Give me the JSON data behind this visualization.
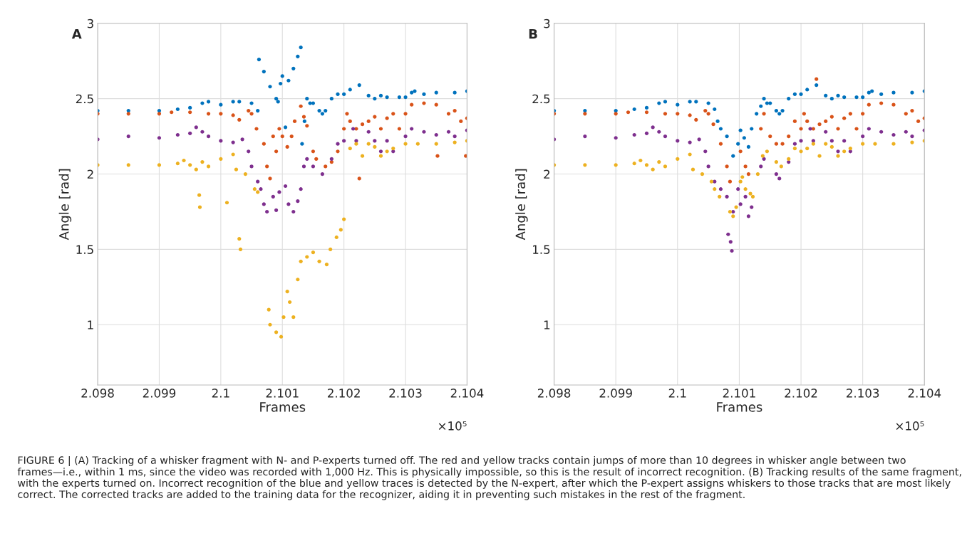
{
  "chart_data": [
    {
      "type": "scatter",
      "xlabel": "Frames",
      "ylabel": "Angle [rad]",
      "xlim": [
        2.098,
        2.104
      ],
      "ylim": [
        0.6,
        3
      ],
      "xticks": [
        2.098,
        2.099,
        2.1,
        2.101,
        2.102,
        2.103,
        2.104
      ],
      "yticks": [
        1,
        1.5,
        2,
        2.5,
        3
      ],
      "grid": true,
      "marker": "circle",
      "annotations": [
        "A",
        "×10⁵"
      ],
      "series": [
        {
          "color": "#0072bd",
          "x": [
            2.098,
            2.0985,
            2.099,
            2.0993,
            2.0995,
            2.0997,
            2.0998,
            2.1,
            2.1002,
            2.1003,
            2.1005,
            2.1006,
            2.10062,
            2.1007,
            2.1008,
            2.1009,
            2.10093,
            2.10097,
            2.101,
            2.10105,
            2.1011,
            2.10118,
            2.10125,
            2.1013,
            2.10132,
            2.10136,
            2.1014,
            2.10145,
            2.1015,
            2.1016,
            2.10165,
            2.1017,
            2.1018,
            2.1019,
            2.102,
            2.1021,
            2.10225,
            2.1024,
            2.1025,
            2.1026,
            2.1027,
            2.1029,
            2.103,
            2.1031,
            2.10315,
            2.1033,
            2.1035,
            2.1038,
            2.104
          ],
          "values": [
            2.42,
            2.42,
            2.42,
            2.43,
            2.44,
            2.47,
            2.48,
            2.46,
            2.48,
            2.48,
            2.47,
            2.42,
            2.76,
            2.68,
            2.58,
            2.5,
            2.48,
            2.6,
            2.65,
            2.31,
            2.62,
            2.7,
            2.78,
            2.84,
            2.2,
            2.35,
            2.5,
            2.47,
            2.47,
            2.42,
            2.4,
            2.42,
            2.5,
            2.53,
            2.53,
            2.56,
            2.59,
            2.52,
            2.5,
            2.52,
            2.51,
            2.51,
            2.51,
            2.54,
            2.55,
            2.53,
            2.54,
            2.54,
            2.55
          ]
        },
        {
          "color": "#d95319",
          "x": [
            2.098,
            2.0985,
            2.099,
            2.0992,
            2.0995,
            2.0998,
            2.1,
            2.1002,
            2.1003,
            2.10045,
            2.1005,
            2.10058,
            2.1007,
            2.10075,
            2.1008,
            2.10085,
            2.1009,
            2.10095,
            2.101,
            2.10108,
            2.10115,
            2.1012,
            2.1013,
            2.10135,
            2.1014,
            2.1015,
            2.10155,
            2.1017,
            2.1018,
            2.1019,
            2.102,
            2.10205,
            2.1021,
            2.1022,
            2.10225,
            2.1023,
            2.1024,
            2.1025,
            2.1026,
            2.1027,
            2.1028,
            2.1029,
            2.103,
            2.1031,
            2.1033,
            2.1035,
            2.10352,
            2.1037,
            2.1038,
            2.1039,
            2.10398,
            2.104
          ],
          "values": [
            2.4,
            2.4,
            2.4,
            2.41,
            2.41,
            2.4,
            2.4,
            2.39,
            2.36,
            2.42,
            2.4,
            2.3,
            2.2,
            2.05,
            1.97,
            2.25,
            2.15,
            2.3,
            2.25,
            2.18,
            2.25,
            2.35,
            2.45,
            2.38,
            2.32,
            2.15,
            2.1,
            2.05,
            2.08,
            2.15,
            2.3,
            2.4,
            2.35,
            2.3,
            1.97,
            2.33,
            2.35,
            2.38,
            2.3,
            2.37,
            2.4,
            2.3,
            2.4,
            2.46,
            2.47,
            2.46,
            2.12,
            2.4,
            2.42,
            2.35,
            2.12,
            2.37
          ]
        },
        {
          "color": "#7e2f8e",
          "x": [
            2.098,
            2.0985,
            2.099,
            2.0993,
            2.0995,
            2.0996,
            2.0997,
            2.0998,
            2.1,
            2.1002,
            2.10035,
            2.10045,
            2.1005,
            2.1006,
            2.10065,
            2.1007,
            2.10075,
            2.10085,
            2.1009,
            2.10095,
            2.10105,
            2.1011,
            2.10118,
            2.10125,
            2.1013,
            2.10135,
            2.1014,
            2.1015,
            2.10165,
            2.1018,
            2.1019,
            2.102,
            2.10215,
            2.1022,
            2.1024,
            2.1025,
            2.1026,
            2.1027,
            2.1028,
            2.103,
            2.1031,
            2.1033,
            2.1035,
            2.1037,
            2.1038,
            2.104
          ],
          "values": [
            2.23,
            2.25,
            2.24,
            2.26,
            2.27,
            2.31,
            2.28,
            2.25,
            2.22,
            2.21,
            2.23,
            2.15,
            2.05,
            1.95,
            1.9,
            1.8,
            1.75,
            1.85,
            1.76,
            1.88,
            1.92,
            1.8,
            1.75,
            1.82,
            1.9,
            2.05,
            2.1,
            2.05,
            2.0,
            2.1,
            2.2,
            2.22,
            2.3,
            2.22,
            2.28,
            2.22,
            2.15,
            2.22,
            2.15,
            2.25,
            2.3,
            2.28,
            2.26,
            2.28,
            2.25,
            2.29
          ]
        },
        {
          "color": "#edb120",
          "x": [
            2.098,
            2.0985,
            2.099,
            2.0993,
            2.0994,
            2.0995,
            2.0996,
            2.09965,
            2.09966,
            2.0997,
            2.0998,
            2.1,
            2.1001,
            2.1002,
            2.10025,
            2.1003,
            2.10032,
            2.1004,
            2.10055,
            2.1006,
            2.10078,
            2.1008,
            2.1009,
            2.10098,
            2.10102,
            2.10108,
            2.10112,
            2.10118,
            2.10125,
            2.1013,
            2.1014,
            2.1015,
            2.1016,
            2.10172,
            2.10178,
            2.10188,
            2.10195,
            2.102,
            2.1021,
            2.1022,
            2.1023,
            2.1024,
            2.1025,
            2.1026,
            2.1027,
            2.1028,
            2.103,
            2.1032,
            2.1035,
            2.1038,
            2.104
          ],
          "values": [
            2.06,
            2.06,
            2.06,
            2.07,
            2.09,
            2.06,
            2.03,
            1.86,
            1.78,
            2.08,
            2.05,
            2.1,
            1.81,
            2.13,
            2.03,
            1.57,
            1.5,
            2.0,
            1.9,
            1.88,
            1.1,
            1.0,
            0.95,
            0.92,
            1.05,
            1.22,
            1.15,
            1.05,
            1.3,
            1.42,
            1.45,
            1.48,
            1.42,
            1.4,
            1.5,
            1.58,
            1.63,
            1.7,
            2.17,
            2.2,
            2.12,
            2.2,
            2.18,
            2.12,
            2.15,
            2.17,
            2.2,
            2.2,
            2.2,
            2.21,
            2.22
          ]
        }
      ]
    },
    {
      "type": "scatter",
      "xlabel": "Frames",
      "ylabel": "Angle [rad]",
      "xlim": [
        2.098,
        2.104
      ],
      "ylim": [
        0.6,
        3
      ],
      "xticks": [
        2.098,
        2.099,
        2.1,
        2.101,
        2.102,
        2.103,
        2.104
      ],
      "yticks": [
        1,
        1.5,
        2,
        2.5,
        3
      ],
      "grid": true,
      "marker": "circle",
      "annotations": [
        "B",
        "×10⁵",
        "FIGURE 6 | (A) Tracking of a whisker fragment with N- and P-experts turned off. The red and yellow tracks contain jumps of more than 10 degrees in whisker angle between two frames—i.e., within 1 ms, since the video was recorded with 1,000 Hz. This is physically impossible, so this is the result of incorrect recognition. (B) Tracking results of the same fragment, with the experts turned on. Incorrect recognition of the blue and yellow traces is detected by the N-expert, after which the P-expert assigns whiskers to those tracks that are most likely correct. The corrected tracks are added to the training data for the recognizer, aiding it in preventing such mistakes in the rest of the fragment."
      ],
      "series": [
        {
          "color": "#0072bd",
          "x": [
            2.098,
            2.0985,
            2.099,
            2.0993,
            2.0995,
            2.0997,
            2.0998,
            2.1,
            2.1002,
            2.1003,
            2.1005,
            2.1006,
            2.10065,
            2.1007,
            2.1008,
            2.1009,
            2.10098,
            2.10102,
            2.10108,
            2.10115,
            2.1012,
            2.10128,
            2.10135,
            2.1014,
            2.10145,
            2.1015,
            2.1016,
            2.10165,
            2.1017,
            2.1018,
            2.1019,
            2.102,
            2.1021,
            2.10225,
            2.1024,
            2.1025,
            2.1026,
            2.1027,
            2.1029,
            2.103,
            2.1031,
            2.10315,
            2.1033,
            2.1035,
            2.1038,
            2.104
          ],
          "values": [
            2.42,
            2.42,
            2.42,
            2.43,
            2.44,
            2.47,
            2.48,
            2.46,
            2.48,
            2.48,
            2.47,
            2.43,
            2.35,
            2.3,
            2.25,
            2.12,
            2.2,
            2.29,
            2.24,
            2.18,
            2.3,
            2.4,
            2.45,
            2.5,
            2.47,
            2.47,
            2.42,
            2.4,
            2.42,
            2.5,
            2.53,
            2.53,
            2.56,
            2.59,
            2.52,
            2.5,
            2.52,
            2.51,
            2.51,
            2.51,
            2.54,
            2.55,
            2.53,
            2.54,
            2.54,
            2.55
          ]
        },
        {
          "color": "#d95319",
          "x": [
            2.098,
            2.0985,
            2.099,
            2.0992,
            2.0995,
            2.0998,
            2.1,
            2.1002,
            2.1003,
            2.10045,
            2.1005,
            2.10058,
            2.1007,
            2.1008,
            2.10085,
            2.10102,
            2.1011,
            2.10115,
            2.10135,
            2.1014,
            2.1015,
            2.1016,
            2.1017,
            2.1018,
            2.1019,
            2.102,
            2.10205,
            2.1021,
            2.1022,
            2.10225,
            2.1023,
            2.1024,
            2.1025,
            2.1026,
            2.1027,
            2.1028,
            2.1029,
            2.103,
            2.1031,
            2.1033,
            2.1035,
            2.1037,
            2.1038,
            2.1039,
            2.104
          ],
          "values": [
            2.4,
            2.4,
            2.4,
            2.41,
            2.41,
            2.4,
            2.4,
            2.39,
            2.36,
            2.42,
            2.4,
            2.33,
            2.2,
            2.05,
            1.95,
            2.15,
            2.05,
            2.0,
            2.3,
            2.4,
            2.25,
            2.2,
            2.2,
            2.25,
            2.35,
            2.3,
            2.4,
            2.35,
            2.3,
            2.63,
            2.33,
            2.35,
            2.38,
            2.3,
            2.37,
            2.4,
            2.3,
            2.4,
            2.46,
            2.47,
            2.46,
            2.4,
            2.42,
            2.35,
            2.37
          ]
        },
        {
          "color": "#7e2f8e",
          "x": [
            2.098,
            2.0985,
            2.099,
            2.0993,
            2.0995,
            2.0996,
            2.0997,
            2.0998,
            2.1,
            2.1002,
            2.10035,
            2.10045,
            2.1005,
            2.1006,
            2.1007,
            2.1008,
            2.10082,
            2.10086,
            2.10088,
            2.1009,
            2.10098,
            2.10102,
            2.1011,
            2.10115,
            2.1012,
            2.10135,
            2.1014,
            2.1016,
            2.10165,
            2.1018,
            2.1019,
            2.102,
            2.10215,
            2.1022,
            2.1024,
            2.1025,
            2.1026,
            2.1027,
            2.1028,
            2.103,
            2.1031,
            2.1033,
            2.1035,
            2.1037,
            2.1038,
            2.104
          ],
          "values": [
            2.23,
            2.25,
            2.24,
            2.26,
            2.27,
            2.31,
            2.28,
            2.25,
            2.22,
            2.21,
            2.23,
            2.15,
            2.05,
            1.95,
            1.9,
            1.85,
            1.6,
            1.55,
            1.49,
            1.75,
            1.9,
            1.8,
            1.85,
            1.72,
            1.78,
            2.05,
            2.1,
            2.0,
            1.97,
            2.08,
            2.2,
            2.22,
            2.3,
            2.22,
            2.28,
            2.22,
            2.15,
            2.22,
            2.15,
            2.25,
            2.3,
            2.28,
            2.26,
            2.28,
            2.25,
            2.29
          ]
        },
        {
          "color": "#edb120",
          "x": [
            2.098,
            2.0985,
            2.099,
            2.0993,
            2.0994,
            2.0995,
            2.0996,
            2.0997,
            2.0998,
            2.1,
            2.1002,
            2.10025,
            2.1004,
            2.10055,
            2.1006,
            2.10068,
            2.10085,
            2.1009,
            2.10095,
            2.10102,
            2.10105,
            2.1011,
            2.10118,
            2.10122,
            2.1013,
            2.10138,
            2.10145,
            2.1016,
            2.10168,
            2.1018,
            2.1019,
            2.102,
            2.1021,
            2.1022,
            2.1023,
            2.1024,
            2.1025,
            2.1026,
            2.1027,
            2.1028,
            2.103,
            2.1032,
            2.1035,
            2.1038,
            2.104
          ],
          "values": [
            2.06,
            2.06,
            2.06,
            2.07,
            2.09,
            2.06,
            2.03,
            2.08,
            2.05,
            2.1,
            2.13,
            2.03,
            2.0,
            1.95,
            1.9,
            1.85,
            1.75,
            1.72,
            1.78,
            1.95,
            1.98,
            1.9,
            1.87,
            1.85,
            2.0,
            2.12,
            2.15,
            2.08,
            2.05,
            2.1,
            2.17,
            2.15,
            2.17,
            2.2,
            2.12,
            2.2,
            2.18,
            2.12,
            2.15,
            2.17,
            2.2,
            2.2,
            2.2,
            2.21,
            2.22
          ]
        }
      ]
    }
  ]
}
